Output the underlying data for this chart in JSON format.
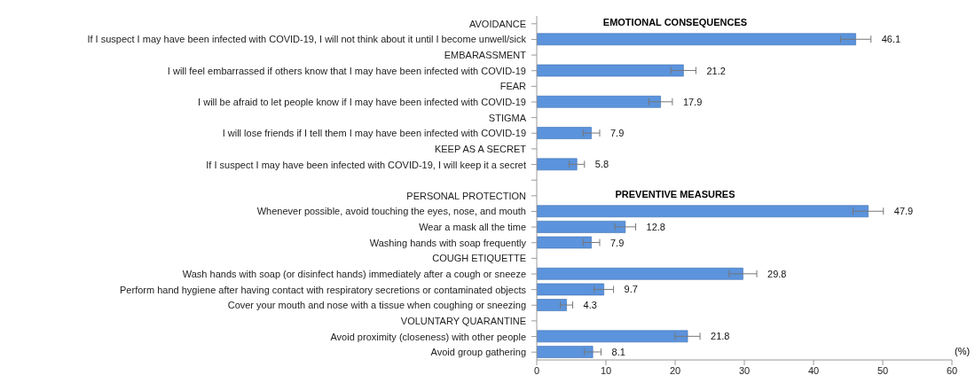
{
  "chart_data": {
    "type": "bar",
    "orientation": "horizontal",
    "xlabel": "(%)",
    "categories": [
      "AVOIDANCE",
      "If I suspect I may have been infected with COVID-19, I will not think about it until I become unwell/sick",
      "EMBARASSMENT",
      "I will feel embarrassed if others know that I may have been infected with COVID-19",
      "FEAR",
      "I will be afraid to let people know if I may have been infected with COVID-19",
      "STIGMA",
      "I will lose friends if I tell them I may have been infected with COVID-19",
      "KEEP AS A SECRET",
      "If I suspect I may have been infected with COVID-19, I will keep it a secret",
      null,
      "PERSONAL PROTECTION",
      "Whenever possible, avoid touching the eyes, nose, and mouth",
      "Wear a mask all the time",
      "Washing hands with soap frequently",
      "COUGH ETIQUETTE",
      "Wash hands with soap (or disinfect hands) immediately after a cough or sneeze",
      "Perform hand hygiene after having contact with respiratory secretions or contaminated objects",
      "Cover your mouth and nose with a tissue when coughing or sneezing",
      "VOLUNTARY QUARANTINE",
      "Avoid proximity (closeness) with other people",
      "Avoid group gathering"
    ],
    "values": [
      null,
      46.1,
      null,
      21.2,
      null,
      17.9,
      null,
      7.9,
      null,
      5.8,
      null,
      null,
      47.9,
      12.8,
      7.9,
      null,
      29.8,
      9.7,
      4.3,
      null,
      21.8,
      8.1
    ],
    "errors": [
      null,
      2.2,
      null,
      1.8,
      null,
      1.7,
      null,
      1.2,
      null,
      1.1,
      null,
      null,
      2.2,
      1.5,
      1.2,
      null,
      2.0,
      1.4,
      0.9,
      null,
      1.8,
      1.2
    ],
    "color": "#5b93dc",
    "data_labels": true,
    "xlim": [
      0,
      60
    ],
    "xticks": [
      0,
      10,
      20,
      30,
      40,
      50,
      60
    ],
    "grid": false,
    "legend": false,
    "annotations": [
      {
        "text": "EMOTIONAL CONSEQUENCES",
        "y": "AVOIDANCE"
      },
      {
        "text": "PREVENTIVE MEASURES",
        "y": "PERSONAL PROTECTION"
      }
    ]
  }
}
